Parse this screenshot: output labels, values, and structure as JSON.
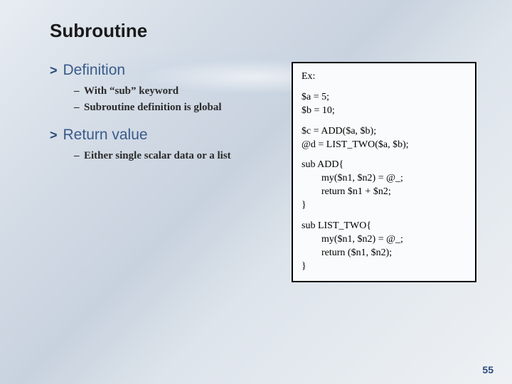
{
  "title": "Subroutine",
  "sections": [
    {
      "heading": "Definition",
      "bullets": [
        "With “sub” keyword",
        "Subroutine definition is global"
      ]
    },
    {
      "heading": "Return value",
      "bullets": [
        "Either single scalar data or a list"
      ]
    }
  ],
  "code": {
    "label": "Ex:",
    "block1": [
      "$a = 5;",
      "$b = 10;"
    ],
    "block2": [
      "$c = ADD($a, $b);",
      "@d = LIST_TWO($a, $b);"
    ],
    "block3": {
      "open": "sub ADD{",
      "body": [
        "my($n1, $n2) = @_;",
        "return $n1 + $n2;"
      ],
      "close": "}"
    },
    "block4": {
      "open": "sub LIST_TWO{",
      "body": [
        "my($n1, $n2) = @_;",
        "return ($n1, $n2);"
      ],
      "close": "}"
    }
  },
  "page_number": "55",
  "colors": {
    "heading": "#3a5a8a",
    "chevron": "#2a4a7a",
    "text": "#2a2a2a",
    "box_border": "#000000",
    "box_bg": "#fafbfc"
  }
}
